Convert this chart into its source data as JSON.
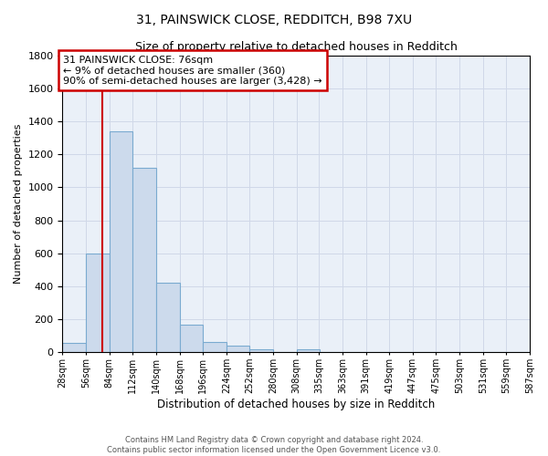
{
  "title": "31, PAINSWICK CLOSE, REDDITCH, B98 7XU",
  "subtitle": "Size of property relative to detached houses in Redditch",
  "xlabel": "Distribution of detached houses by size in Redditch",
  "ylabel": "Number of detached properties",
  "bin_edges": [
    28,
    56,
    84,
    112,
    140,
    168,
    196,
    224,
    252,
    280,
    308,
    335,
    363,
    391,
    419,
    447,
    475,
    503,
    531,
    559,
    587
  ],
  "bar_heights": [
    60,
    600,
    1340,
    1120,
    420,
    170,
    65,
    40,
    20,
    0,
    20,
    0,
    0,
    0,
    0,
    0,
    0,
    0,
    0,
    0
  ],
  "bar_color": "#ccdaec",
  "bar_edge_color": "#7aaad0",
  "grid_color": "#d0d8e8",
  "background_color": "#eaf0f8",
  "property_size": 76,
  "red_line_color": "#cc0000",
  "annotation_line1": "31 PAINSWICK CLOSE: 76sqm",
  "annotation_line2": "← 9% of detached houses are smaller (360)",
  "annotation_line3": "90% of semi-detached houses are larger (3,428) →",
  "annotation_box_color": "#cc0000",
  "ylim": [
    0,
    1800
  ],
  "yticks": [
    0,
    200,
    400,
    600,
    800,
    1000,
    1200,
    1400,
    1600,
    1800
  ],
  "footnote": "Contains HM Land Registry data © Crown copyright and database right 2024.\nContains public sector information licensed under the Open Government Licence v3.0.",
  "tick_labels": [
    "28sqm",
    "56sqm",
    "84sqm",
    "112sqm",
    "140sqm",
    "168sqm",
    "196sqm",
    "224sqm",
    "252sqm",
    "280sqm",
    "308sqm",
    "335sqm",
    "363sqm",
    "391sqm",
    "419sqm",
    "447sqm",
    "475sqm",
    "503sqm",
    "531sqm",
    "559sqm",
    "587sqm"
  ]
}
